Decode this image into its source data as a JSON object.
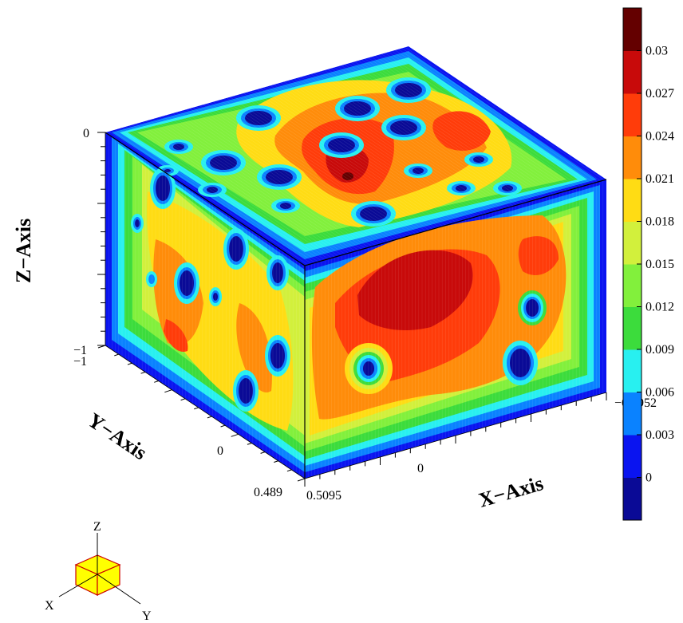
{
  "chart_data": {
    "type": "heatmap",
    "subtype": "3d-volume-contour",
    "title": "",
    "axes": {
      "x": {
        "label": "X−Axis",
        "ticks": [
          "0.5095",
          "0",
          "−0.9952"
        ]
      },
      "y": {
        "label": "Y−Axis",
        "ticks": [
          "−1",
          "0",
          "0.489"
        ]
      },
      "z": {
        "label": "Z−Axis",
        "ticks": [
          "0",
          "−1"
        ]
      }
    },
    "colorbar": {
      "levels": [
        0,
        0.003,
        0.006,
        0.009,
        0.012,
        0.015,
        0.018,
        0.021,
        0.024,
        0.027,
        0.03
      ],
      "labels": [
        "0",
        "0.003",
        "0.006",
        "0.009",
        "0.012",
        "0.015",
        "0.018",
        "0.021",
        "0.024",
        "0.027",
        "0.03"
      ],
      "colors": [
        "#0a0a96",
        "#0a14f0",
        "#0a82ff",
        "#28f0f0",
        "#3cdc3c",
        "#82f03c",
        "#d2f03c",
        "#ffdc14",
        "#ff8c0a",
        "#ff3c0a",
        "#c80a0a",
        "#640000"
      ]
    },
    "orientation_triad": {
      "x_label": "X",
      "y_label": "Y",
      "z_label": "Z",
      "face_color": "#ffff00",
      "edge_color": "#cc0000"
    },
    "grid": false,
    "legend": "colorbar right"
  }
}
